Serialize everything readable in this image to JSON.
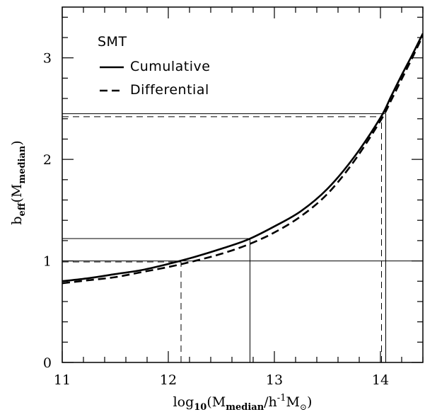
{
  "chart_data": {
    "type": "line",
    "xlabel": {
      "pre": "log",
      "sub1": "10",
      "mid": "(M",
      "sub2": "median",
      "post": "/h",
      "sup": "-1",
      "post2": "M",
      "sun": "⊙",
      "close": ")"
    },
    "ylabel": {
      "pre": "b",
      "sub1": "eff",
      "mid": "(M",
      "sub2": "median",
      "close": ")"
    },
    "xlim": [
      11,
      14.4
    ],
    "ylim": [
      0,
      3.5
    ],
    "xticks": [
      11,
      12,
      13,
      14
    ],
    "yticks": [
      0,
      1,
      2,
      3
    ],
    "legend": {
      "title": "SMT",
      "position": "top-left",
      "entries": [
        {
          "label": "Cumulative",
          "style": "solid"
        },
        {
          "label": "Differential",
          "style": "dashed"
        }
      ]
    },
    "series": [
      {
        "name": "Cumulative",
        "style": "solid",
        "x": [
          11.0,
          11.25,
          11.5,
          11.75,
          12.0,
          12.25,
          12.5,
          12.75,
          13.0,
          13.25,
          13.5,
          13.75,
          14.0,
          14.1,
          14.2,
          14.3,
          14.4
        ],
        "y": [
          0.8,
          0.83,
          0.87,
          0.91,
          0.97,
          1.04,
          1.12,
          1.21,
          1.34,
          1.49,
          1.71,
          2.02,
          2.41,
          2.62,
          2.83,
          3.03,
          3.24
        ]
      },
      {
        "name": "Differential",
        "style": "dashed",
        "x": [
          11.0,
          11.25,
          11.5,
          11.75,
          12.0,
          12.25,
          12.5,
          12.75,
          13.0,
          13.25,
          13.5,
          13.75,
          14.0,
          14.1,
          14.2,
          14.3,
          14.4
        ],
        "y": [
          0.78,
          0.81,
          0.84,
          0.89,
          0.94,
          1.0,
          1.07,
          1.16,
          1.28,
          1.44,
          1.66,
          1.98,
          2.38,
          2.58,
          2.79,
          3.0,
          3.22
        ]
      }
    ],
    "reference_lines": [
      {
        "orientation": "horizontal",
        "y": 1.0,
        "x_from": 11,
        "x_to": 14.4,
        "style": "solid"
      },
      {
        "orientation": "horizontal",
        "y": 0.99,
        "x_from": 11,
        "x_to": 12.12,
        "style": "dashed"
      },
      {
        "orientation": "vertical",
        "x": 12.12,
        "y_from": 0,
        "y_to": 0.99,
        "style": "dashed"
      },
      {
        "orientation": "horizontal",
        "y": 1.22,
        "x_from": 11,
        "x_to": 12.77,
        "style": "solid"
      },
      {
        "orientation": "vertical",
        "x": 12.77,
        "y_from": 0,
        "y_to": 1.22,
        "style": "solid"
      },
      {
        "orientation": "horizontal",
        "y": 2.45,
        "x_from": 11,
        "x_to": 14.05,
        "style": "solid"
      },
      {
        "orientation": "vertical",
        "x": 14.05,
        "y_from": 0,
        "y_to": 2.45,
        "style": "solid"
      },
      {
        "orientation": "horizontal",
        "y": 2.42,
        "x_from": 11,
        "x_to": 14.01,
        "style": "dashed"
      },
      {
        "orientation": "vertical",
        "x": 14.01,
        "y_from": 0,
        "y_to": 2.42,
        "style": "dashed"
      }
    ]
  }
}
